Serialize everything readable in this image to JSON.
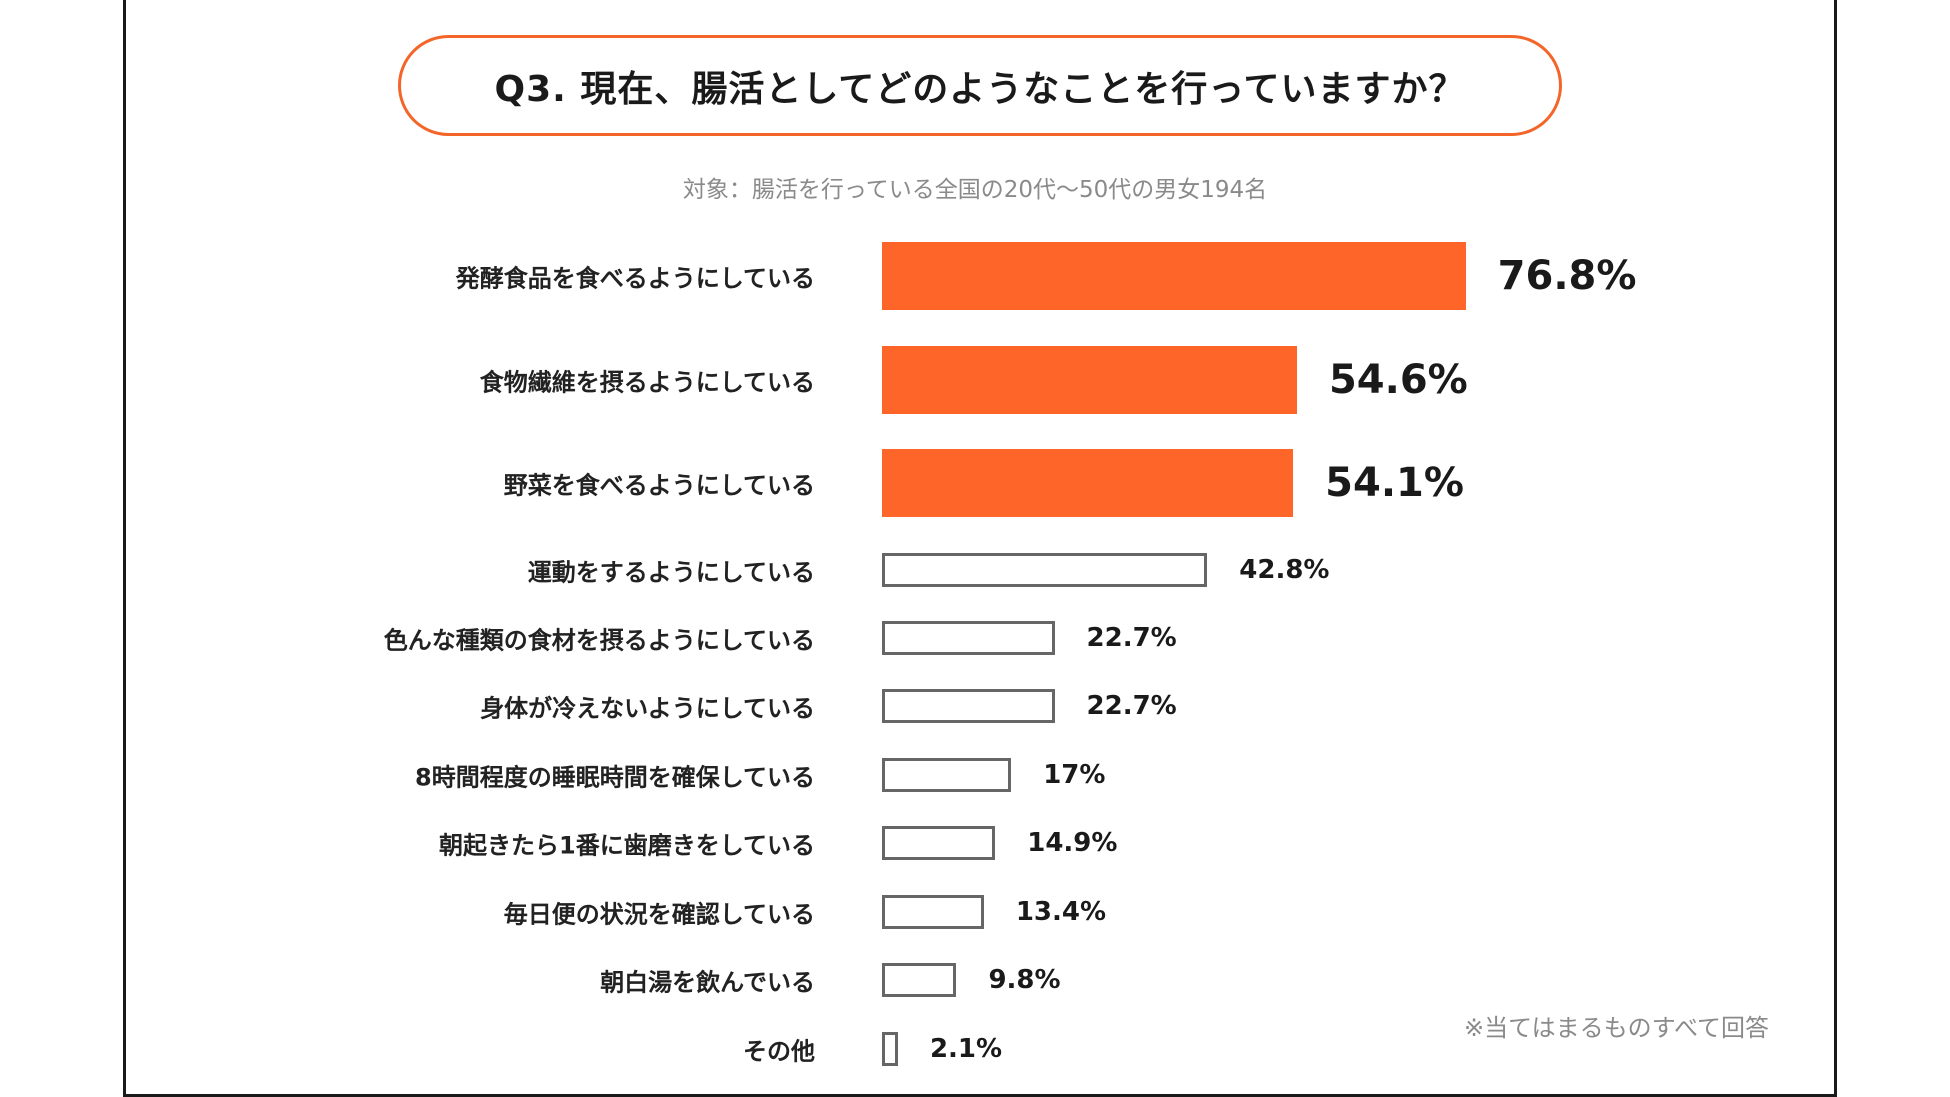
{
  "chart_data": {
    "type": "bar",
    "orientation": "horizontal",
    "title": "Q3. 現在、腸活としてどのようなことを行っていますか？",
    "subtitle": "対象：腸活を行っている全国の20代〜50代の男女194名",
    "categories": [
      "発酵食品を食べるようにしている",
      "食物繊維を摂るようにしている",
      "野菜を食べるようにしている",
      "運動をするようにしている",
      "色んな種類の食材を摂るようにしている",
      "身体が冷えないようにしている",
      "8時間程度の睡眠時間を確保している",
      "朝起きたら1番に歯磨きをしている",
      "毎日便の状況を確認している",
      "朝白湯を飲んでいる",
      "その他"
    ],
    "values": [
      76.8,
      54.6,
      54.1,
      42.8,
      22.7,
      22.7,
      17,
      14.9,
      13.4,
      9.8,
      2.1
    ],
    "value_labels": [
      "76.8%",
      "54.6%",
      "54.1%",
      "42.8%",
      "22.7%",
      "22.7%",
      "17%",
      "14.9%",
      "13.4%",
      "9.8%",
      "2.1%"
    ],
    "highlight_top": 3,
    "colors": {
      "highlight": "#fe6629",
      "outline": "#666666",
      "title_border": "#f4652a"
    },
    "footnote": "※当てはまるものすべて回答",
    "xlabel": "",
    "ylabel": "",
    "grid": false
  }
}
